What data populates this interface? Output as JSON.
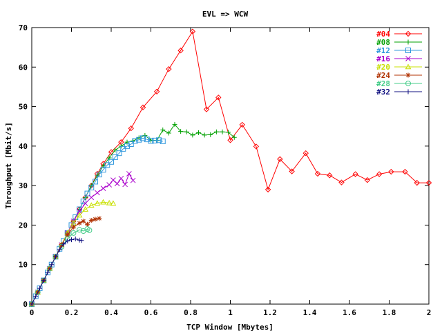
{
  "chart_data": {
    "type": "line",
    "title": "EVL => WCW",
    "xlabel": "TCP Window [Mbytes]",
    "ylabel": "Throughput [Mbit/s]",
    "xlim": [
      0,
      2
    ],
    "ylim": [
      0,
      70
    ],
    "xticks": [
      "0",
      "0.2",
      "0.4",
      "0.6",
      "0.8",
      "1",
      "1.2",
      "1.4",
      "1.6",
      "1.8",
      "2"
    ],
    "yticks": [
      "0",
      "10",
      "20",
      "30",
      "40",
      "50",
      "60",
      "70"
    ],
    "legend_position": "top-right",
    "grid": false,
    "series": [
      {
        "name": "#04",
        "color": "#ff0000",
        "marker": "diamond",
        "x": [
          0,
          0.03,
          0.06,
          0.09,
          0.12,
          0.15,
          0.18,
          0.21,
          0.24,
          0.27,
          0.3,
          0.33,
          0.36,
          0.4,
          0.45,
          0.5,
          0.56,
          0.63,
          0.69,
          0.75,
          0.81,
          0.88,
          0.94,
          1.0,
          1.06,
          1.13,
          1.19,
          1.25,
          1.31,
          1.38,
          1.44,
          1.5,
          1.56,
          1.63,
          1.69,
          1.75,
          1.81,
          1.88,
          1.94,
          2.0
        ],
        "y": [
          0,
          3,
          6,
          9,
          12,
          15,
          18,
          21,
          24,
          27,
          30,
          33,
          35.5,
          38.5,
          41,
          44.5,
          49.8,
          53.8,
          59.5,
          64.2,
          69,
          49.3,
          52.3,
          41.5,
          45.4,
          39.9,
          29,
          36.7,
          33.6,
          38.2,
          33,
          32.6,
          30.8,
          32.9,
          31.4,
          32.9,
          33.5,
          33.5,
          30.7,
          30.7
        ]
      },
      {
        "name": "#08",
        "color": "#00a000",
        "marker": "plus",
        "x": [
          0,
          0.03,
          0.06,
          0.09,
          0.12,
          0.15,
          0.18,
          0.21,
          0.24,
          0.27,
          0.3,
          0.33,
          0.36,
          0.39,
          0.42,
          0.45,
          0.48,
          0.51,
          0.54,
          0.57,
          0.6,
          0.63,
          0.66,
          0.69,
          0.72,
          0.75,
          0.78,
          0.81,
          0.84,
          0.87,
          0.9,
          0.93,
          0.96,
          0.99,
          1.02
        ],
        "y": [
          0,
          3,
          6,
          9,
          12,
          15,
          18,
          21,
          24,
          27,
          30,
          32.5,
          35,
          37,
          39,
          40,
          41,
          41.3,
          42.1,
          42.7,
          41.5,
          41.4,
          44.1,
          43.3,
          45.5,
          43.7,
          43.6,
          42.8,
          43.4,
          42.8,
          42.9,
          43.6,
          43.6,
          43.5,
          42.2
        ]
      },
      {
        "name": "#12",
        "color": "#3399dd",
        "marker": "square",
        "x": [
          0,
          0.02,
          0.04,
          0.06,
          0.08,
          0.1,
          0.12,
          0.14,
          0.16,
          0.18,
          0.2,
          0.22,
          0.24,
          0.26,
          0.28,
          0.3,
          0.32,
          0.34,
          0.36,
          0.38,
          0.4,
          0.42,
          0.44,
          0.46,
          0.48,
          0.5,
          0.52,
          0.54,
          0.56,
          0.58,
          0.6,
          0.62,
          0.64,
          0.66
        ],
        "y": [
          0,
          2,
          4,
          6,
          8,
          10,
          12,
          14,
          16,
          18,
          20,
          22,
          24,
          26,
          28,
          29.5,
          31,
          32.8,
          34,
          35.2,
          36,
          37.2,
          38.2,
          39.3,
          40,
          40.5,
          41.3,
          41.6,
          42,
          41.7,
          41.3,
          41.4,
          41.5,
          41.2
        ]
      },
      {
        "name": "#16",
        "color": "#aa00cc",
        "marker": "x",
        "x": [
          0,
          0.03,
          0.06,
          0.09,
          0.12,
          0.15,
          0.18,
          0.21,
          0.24,
          0.27,
          0.3,
          0.33,
          0.36,
          0.39,
          0.41,
          0.43,
          0.45,
          0.47,
          0.49,
          0.51
        ],
        "y": [
          0,
          3,
          6,
          9,
          12,
          15,
          18,
          21,
          23.5,
          25.5,
          27,
          28.2,
          29.3,
          30.2,
          31.4,
          30.5,
          31.8,
          30.3,
          33,
          31.3
        ]
      },
      {
        "name": "#20",
        "color": "#c8e000",
        "marker": "triangle",
        "x": [
          0,
          0.03,
          0.06,
          0.09,
          0.12,
          0.15,
          0.18,
          0.21,
          0.24,
          0.27,
          0.3,
          0.33,
          0.36,
          0.39,
          0.41
        ],
        "y": [
          0,
          3,
          6,
          9,
          12,
          15,
          18,
          20.5,
          22.5,
          24,
          25,
          25.5,
          25.8,
          25.6,
          25.5
        ]
      },
      {
        "name": "#24",
        "color": "#b03000",
        "marker": "star",
        "x": [
          0,
          0.03,
          0.06,
          0.09,
          0.12,
          0.15,
          0.18,
          0.21,
          0.24,
          0.26,
          0.28,
          0.3,
          0.32,
          0.34
        ],
        "y": [
          0,
          3,
          6,
          9,
          12,
          15,
          17.5,
          19.5,
          20.5,
          21,
          20.2,
          21.2,
          21.5,
          21.7
        ]
      },
      {
        "name": "#28",
        "color": "#44cc88",
        "marker": "circle",
        "x": [
          0,
          0.03,
          0.06,
          0.09,
          0.12,
          0.15,
          0.18,
          0.21,
          0.24,
          0.26,
          0.28,
          0.29
        ],
        "y": [
          0,
          3,
          6,
          9,
          12,
          14.5,
          16.5,
          18,
          18.8,
          18.5,
          19,
          18.7
        ]
      },
      {
        "name": "#32",
        "color": "#101080",
        "marker": "plus",
        "x": [
          0,
          0.02,
          0.04,
          0.06,
          0.08,
          0.1,
          0.12,
          0.14,
          0.16,
          0.18,
          0.2,
          0.22,
          0.24,
          0.25
        ],
        "y": [
          0,
          2,
          4,
          6,
          8,
          10,
          12,
          13.8,
          15.2,
          16,
          16.3,
          16.5,
          16.2,
          16.1
        ]
      }
    ]
  }
}
